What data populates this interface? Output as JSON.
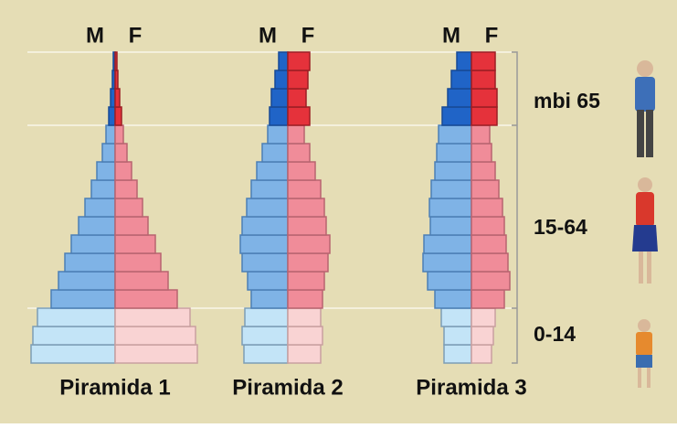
{
  "chart_data": [
    {
      "type": "pyramid",
      "title": "Piramida 1",
      "series": [
        {
          "name": "M",
          "color": [
            "#c3e4f7",
            "#7fb3e6",
            "#2064c7"
          ],
          "values": [
            92,
            90,
            85,
            70,
            62,
            55,
            48,
            40,
            33,
            26,
            20,
            14,
            10,
            7,
            5,
            3,
            2
          ]
        },
        {
          "name": "F",
          "color": [
            "#f9d3d3",
            "#f08c99",
            "#e5323b"
          ],
          "values": [
            90,
            88,
            82,
            68,
            58,
            50,
            44,
            36,
            30,
            24,
            18,
            13,
            9,
            7,
            5,
            3,
            2
          ]
        }
      ]
    },
    {
      "type": "pyramid",
      "title": "Piramida 2",
      "series": [
        {
          "name": "M",
          "color": [
            "#c3e4f7",
            "#7fb3e6",
            "#2064c7"
          ],
          "values": [
            48,
            50,
            47,
            40,
            44,
            50,
            52,
            50,
            45,
            40,
            34,
            28,
            22,
            20,
            18,
            14,
            10
          ]
        },
        {
          "name": "F",
          "color": [
            "#f9d3d3",
            "#f08c99",
            "#e5323b"
          ],
          "values": [
            36,
            38,
            36,
            38,
            40,
            44,
            46,
            42,
            40,
            36,
            30,
            24,
            18,
            24,
            20,
            22,
            24
          ]
        }
      ]
    },
    {
      "type": "pyramid",
      "title": "Piramida 3",
      "series": [
        {
          "name": "M",
          "color": [
            "#c3e4f7",
            "#7fb3e6",
            "#2064c7"
          ],
          "values": [
            30,
            30,
            33,
            40,
            48,
            53,
            52,
            45,
            46,
            44,
            40,
            38,
            36,
            32,
            26,
            22,
            16
          ]
        },
        {
          "name": "F",
          "color": [
            "#f9d3d3",
            "#f08c99",
            "#e5323b"
          ],
          "values": [
            22,
            24,
            26,
            36,
            42,
            40,
            38,
            36,
            34,
            30,
            26,
            22,
            20,
            28,
            28,
            26,
            26
          ]
        }
      ]
    }
  ],
  "age_groups": [
    "0-14",
    "15-64",
    "mbi 65"
  ]
}
